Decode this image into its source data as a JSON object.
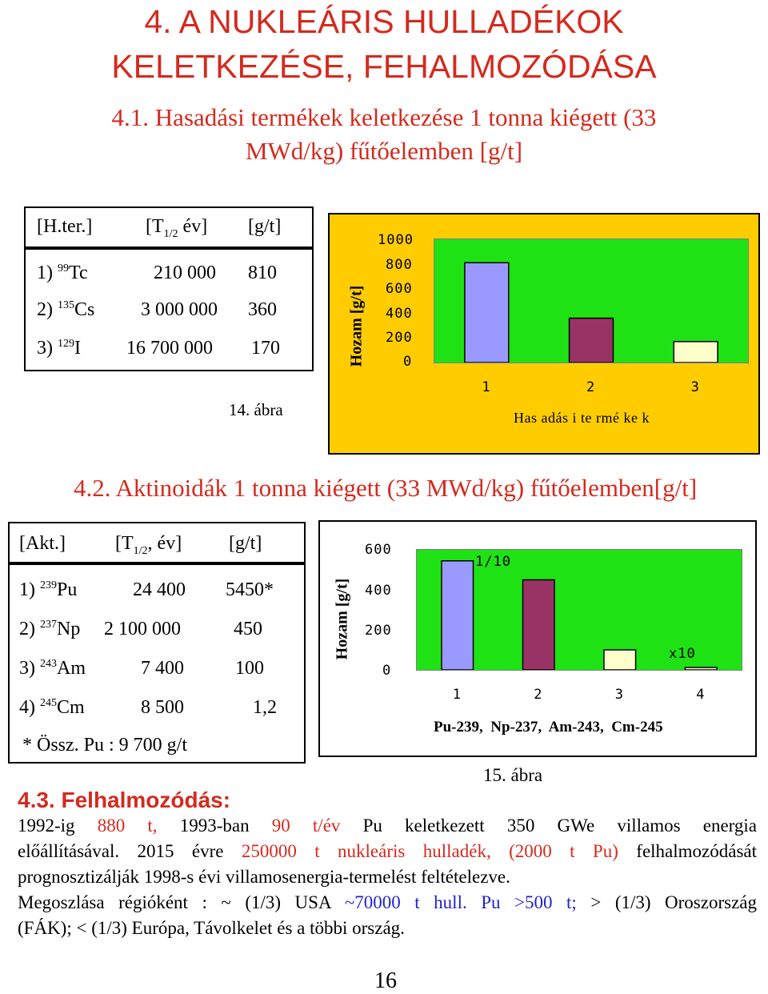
{
  "title": {
    "line1": "4. A NUKLEÁRIS HULLADÉKOK",
    "line2": "KELETKEZÉSE, FEHALMOZÓDÁSA"
  },
  "section1": {
    "heading_line1": "4.1. Hasadási termékek keletkezése 1 tonna kiégett (33",
    "heading_line2": "MWd/kg) fűtőelemben [g/t]",
    "table": {
      "h1": "[H.ter.]",
      "h2_pre": "[T",
      "h2_sub": "1/2",
      "h2_post": " év]",
      "h3": "[g/t]",
      "rows": [
        {
          "idx": "1) ",
          "mass": "99",
          "el": "Tc",
          "half": "210 000",
          "val": "810"
        },
        {
          "idx": "2) ",
          "mass": "135",
          "el": "Cs",
          "half": "3 000 000",
          "val": "360"
        },
        {
          "idx": "3) ",
          "mass": "129",
          "el": "I",
          "half": "16 700 000",
          "val": "170"
        }
      ]
    },
    "figure_caption": "14. ábra"
  },
  "chart1_text": {
    "ylabel": "Hozam [g/t]",
    "xlabel": "Has adás i te rmé ke k",
    "yticks": [
      "1000",
      "800",
      "600",
      "400",
      "200",
      "0"
    ]
  },
  "section2": {
    "heading": "4.2. Aktinoidák 1 tonna kiégett (33 MWd/kg) fűtőelemben[g/t]",
    "table": {
      "h1": "[Akt.]",
      "h2_pre": "[T",
      "h2_sub": "1/2",
      "h2_post": ", év]",
      "h3": "[g/t]",
      "rows": [
        {
          "idx": "1) ",
          "mass": "239",
          "el": "Pu",
          "half": "24 400",
          "val": "5450*"
        },
        {
          "idx": "2) ",
          "mass": "237",
          "el": "Np",
          "half": "2 100 000",
          "val": "450"
        },
        {
          "idx": "3) ",
          "mass": "243",
          "el": "Am",
          "half": "7 400",
          "val": "100"
        },
        {
          "idx": "4) ",
          "mass": "245",
          "el": "Cm",
          "half": "8 500",
          "val": "1,2"
        }
      ],
      "footnote": "* Össz. Pu : 9 700 g/t"
    },
    "figure_caption": "15. ábra"
  },
  "chart2_text": {
    "ylabel": "Hozam [g/t]",
    "yticks": [
      "600",
      "400",
      "200",
      "0"
    ],
    "note_bar1": "1/10",
    "note_bar4": "x10",
    "species": "Pu-239,  Np-237,  Am-243,  Cm-245"
  },
  "section3": {
    "heading": "4.3. Felhalmozódás:",
    "p1": {
      "a": "1992-ig ",
      "b": "880 t,",
      "c": " 1993-ban ",
      "d": "90 t/év",
      "e": " Pu keletkezett 350 GWe villamos energia"
    },
    "p2": {
      "a": "előállításával. 2015 évre ",
      "b": "250000 t nukleáris hulladék, (2000 t Pu)",
      "c": " felhalmozódását"
    },
    "p3": "prognosztizálják 1998-s évi villamosenergia-termelést feltételezve.",
    "p4": {
      "a": "Megoszlása régióként : ~ (1/3) USA ",
      "b": "~70000 t hull.",
      "c": " ",
      "d": "Pu >500 t;",
      "e": " > (1/3) Oroszország"
    },
    "p5": "(FÁK); < (1/3) Európa, Távolkelet és a többi ország."
  },
  "page_number": "16",
  "colors": {
    "heading_red": "#d42a1e",
    "chart1_bg": "#ffcc00",
    "plot_green": "#1ee214",
    "bar_blue": "#9999ff",
    "bar_maroon": "#993366",
    "bar_cream": "#ffffcc",
    "text_blue": "#2222cc"
  },
  "chart_data": [
    {
      "type": "bar",
      "categories": [
        "1",
        "2",
        "3"
      ],
      "values": [
        810,
        360,
        170
      ],
      "ylabel": "Hozam [g/t]",
      "xlabel": "Has adás i te rmé ke k",
      "ylim": [
        0,
        1000
      ],
      "colors": [
        "#9999ff",
        "#993366",
        "#ffffcc"
      ]
    },
    {
      "type": "bar",
      "categories": [
        "1",
        "2",
        "3",
        "4"
      ],
      "values": [
        545,
        450,
        100,
        12
      ],
      "ylabel": "Hozam [g/t]",
      "ylim": [
        0,
        600
      ],
      "colors": [
        "#9999ff",
        "#993366",
        "#ffffcc",
        "#ffffcc"
      ]
    }
  ]
}
